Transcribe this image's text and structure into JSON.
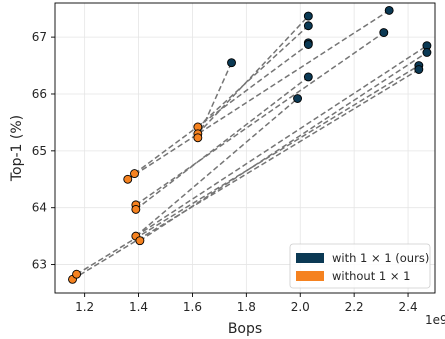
{
  "chart_data": {
    "type": "scatter",
    "xlabel": "Bops",
    "ylabel": "Top-1 (%)",
    "x_offset_label": "1e9",
    "xlim": [
      1.09,
      2.5
    ],
    "ylim": [
      62.5,
      67.6
    ],
    "xticks": [
      1.2,
      1.4,
      1.6,
      1.8,
      2.0,
      2.2,
      2.4
    ],
    "yticks": [
      63,
      64,
      65,
      66,
      67
    ],
    "grid": true,
    "legend_position": "lower-right",
    "series": [
      {
        "name": "with 1 × 1 (ours)",
        "color": "#0b3954",
        "points": [
          {
            "x": 1.745,
            "y": 66.55
          },
          {
            "x": 2.03,
            "y": 67.37
          },
          {
            "x": 2.03,
            "y": 67.2
          },
          {
            "x": 2.03,
            "y": 66.9
          },
          {
            "x": 2.03,
            "y": 66.87
          },
          {
            "x": 2.03,
            "y": 66.3
          },
          {
            "x": 1.99,
            "y": 65.92
          },
          {
            "x": 2.33,
            "y": 67.47
          },
          {
            "x": 2.31,
            "y": 67.08
          },
          {
            "x": 2.47,
            "y": 66.85
          },
          {
            "x": 2.47,
            "y": 66.73
          },
          {
            "x": 2.44,
            "y": 66.5
          },
          {
            "x": 2.44,
            "y": 66.43
          }
        ]
      },
      {
        "name": "without 1 × 1",
        "color": "#f58220",
        "points": [
          {
            "x": 1.155,
            "y": 62.74
          },
          {
            "x": 1.17,
            "y": 62.83
          },
          {
            "x": 1.36,
            "y": 64.5
          },
          {
            "x": 1.385,
            "y": 64.6
          },
          {
            "x": 1.39,
            "y": 64.05
          },
          {
            "x": 1.39,
            "y": 63.97
          },
          {
            "x": 1.39,
            "y": 63.5
          },
          {
            "x": 1.405,
            "y": 63.42
          },
          {
            "x": 1.62,
            "y": 65.42
          },
          {
            "x": 1.62,
            "y": 65.3
          },
          {
            "x": 1.62,
            "y": 65.23
          }
        ]
      }
    ],
    "connections": [
      {
        "from": [
          1.62,
          65.23
        ],
        "to": [
          1.745,
          66.55
        ]
      },
      {
        "from": [
          1.62,
          65.3
        ],
        "to": [
          2.03,
          67.37
        ]
      },
      {
        "from": [
          1.62,
          65.42
        ],
        "to": [
          2.03,
          67.2
        ]
      },
      {
        "from": [
          1.385,
          64.6
        ],
        "to": [
          2.03,
          66.87
        ]
      },
      {
        "from": [
          1.36,
          64.5
        ],
        "to": [
          2.33,
          67.47
        ]
      },
      {
        "from": [
          1.39,
          64.05
        ],
        "to": [
          2.31,
          67.08
        ]
      },
      {
        "from": [
          1.39,
          63.97
        ],
        "to": [
          2.03,
          66.3
        ]
      },
      {
        "from": [
          1.39,
          63.5
        ],
        "to": [
          2.47,
          66.85
        ]
      },
      {
        "from": [
          1.405,
          63.42
        ],
        "to": [
          2.47,
          66.73
        ]
      },
      {
        "from": [
          1.17,
          62.83
        ],
        "to": [
          2.44,
          66.5
        ]
      },
      {
        "from": [
          1.155,
          62.74
        ],
        "to": [
          2.44,
          66.43
        ]
      },
      {
        "from": [
          1.39,
          63.5
        ],
        "to": [
          1.99,
          65.92
        ]
      }
    ],
    "connection_color": "#757575"
  }
}
